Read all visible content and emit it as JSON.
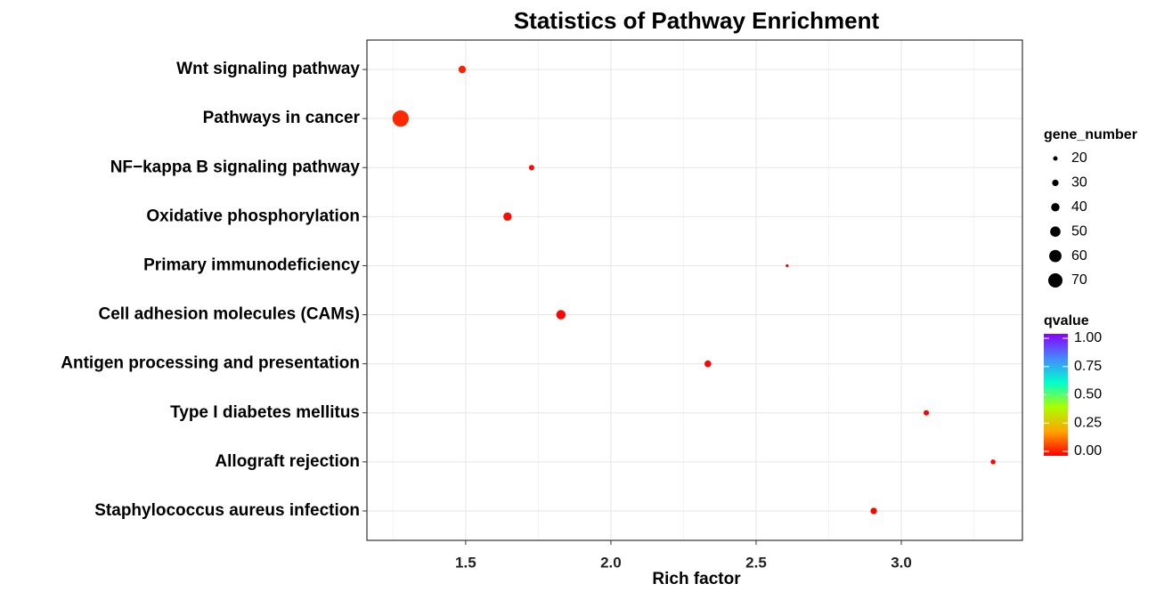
{
  "chart_data": {
    "type": "scatter",
    "title": "Statistics of Pathway Enrichment",
    "x_label": "Rich factor",
    "categories": [
      "Wnt signaling pathway",
      "Pathways in cancer",
      "NF−kappa B signaling pathway",
      "Oxidative phosphorylation",
      "Primary immunodeficiency",
      "Cell adhesion molecules (CAMs)",
      "Antigen processing and presentation",
      "Type I diabetes mellitus",
      "Allograft rejection",
      "Staphylococcus aureus infection"
    ],
    "values": [
      1.488,
      1.276,
      1.727,
      1.644,
      2.607,
      1.828,
      2.334,
      3.086,
      3.316,
      2.905
    ],
    "gene_number": [
      35,
      80,
      25,
      40,
      12,
      45,
      32,
      25,
      22,
      30
    ],
    "qvalue": [
      0.04,
      0.05,
      0.01,
      0.015,
      0.0,
      0.005,
      0.005,
      0.0,
      0.0,
      0.0
    ],
    "xlim": [
      1.16,
      3.417
    ],
    "xticks": [
      1.5,
      {
        "value": 2,
        "label": "2.0"
      },
      2.5,
      {
        "value": 3,
        "label": "3.0"
      }
    ],
    "grid": true,
    "size_legend": {
      "title": "gene_number",
      "values": [
        20,
        30,
        40,
        50,
        60,
        70
      ]
    },
    "color_legend": {
      "title": "qvalue",
      "ticks": [
        {
          "value": 0,
          "label": "0.00"
        },
        0.25,
        {
          "value": 0.5,
          "label": "0.50"
        },
        0.75,
        {
          "value": 1,
          "label": "1.00"
        }
      ]
    },
    "color_scale": [
      "#ff0000",
      "#ffa500",
      "#aaff00",
      "#00ffcc",
      "#4488ff",
      "#8800ff"
    ]
  }
}
